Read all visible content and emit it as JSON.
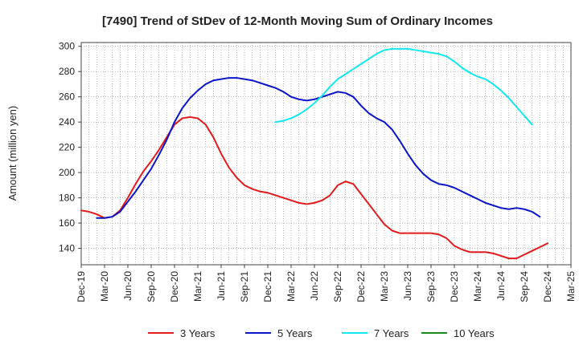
{
  "chart_data": {
    "type": "line",
    "title": "[7490]  Trend of StDev of 12-Month Moving Sum of Ordinary Incomes",
    "xlabel": "",
    "ylabel": "Amount (million yen)",
    "ylim": [
      127,
      303
    ],
    "yticks": [
      140,
      160,
      180,
      200,
      220,
      240,
      260,
      280,
      300
    ],
    "x_ticks": [
      "Dec-19",
      "Mar-20",
      "Jun-20",
      "Sep-20",
      "Dec-20",
      "Mar-21",
      "Jun-21",
      "Sep-21",
      "Dec-21",
      "Mar-22",
      "Jun-22",
      "Sep-22",
      "Dec-22",
      "Mar-23",
      "Jun-23",
      "Sep-23",
      "Dec-23",
      "Mar-24",
      "Jun-24",
      "Sep-24",
      "Dec-24",
      "Mar-25"
    ],
    "grid": true,
    "legend_position": "bottom",
    "series": [
      {
        "name": "3 Years",
        "color": "#e31a1c",
        "start_index": 0,
        "values": [
          170,
          169,
          167,
          164,
          165,
          170,
          180,
          191,
          201,
          209,
          218,
          228,
          238,
          243,
          244,
          243,
          238,
          228,
          215,
          204,
          196,
          190,
          187,
          185,
          184,
          182,
          180,
          178,
          176,
          175,
          176,
          178,
          182,
          190,
          193,
          191,
          183,
          175,
          167,
          159,
          154,
          152,
          152,
          152,
          152,
          152,
          151,
          148,
          142,
          139,
          137,
          137,
          137,
          136,
          134,
          132,
          132,
          135,
          138,
          141,
          144
        ]
      },
      {
        "name": "5 Years",
        "color": "#0a14c8",
        "start_index": 2,
        "values": [
          164,
          164,
          165,
          169,
          177,
          185,
          194,
          203,
          214,
          226,
          240,
          251,
          259,
          265,
          270,
          273,
          274,
          275,
          275,
          274,
          273,
          271,
          269,
          267,
          264,
          260,
          258,
          257,
          258,
          260,
          262,
          264,
          263,
          260,
          253,
          247,
          243,
          240,
          234,
          225,
          215,
          206,
          199,
          194,
          191,
          190,
          188,
          185,
          182,
          179,
          176,
          174,
          172,
          171,
          172,
          171,
          169,
          165
        ]
      },
      {
        "name": "7 Years",
        "color": "#11e8f0",
        "start_index": 25,
        "values": [
          240,
          241,
          243,
          246,
          250,
          255,
          261,
          268,
          274,
          278,
          282,
          286,
          290,
          294,
          297,
          298,
          298,
          298,
          297,
          296,
          295,
          294,
          292,
          288,
          283,
          279,
          276,
          274,
          270,
          265,
          259,
          252,
          245,
          238
        ]
      },
      {
        "name": "10 Years",
        "color": "#1a8a1a",
        "start_index": 0,
        "values": []
      }
    ]
  }
}
